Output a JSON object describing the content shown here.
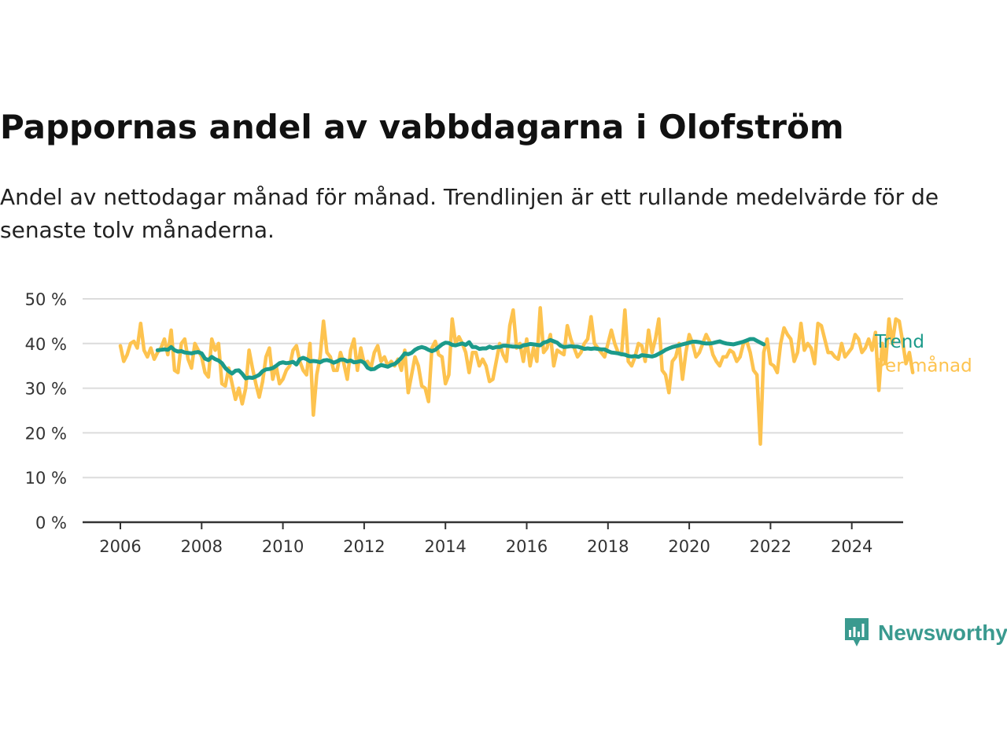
{
  "header": {
    "title": "Pappornas andel av vabbdagarna i Olofström",
    "subtitle": "Andel av nettodagar månad för månad. Trendlinjen är ett rullande medelvärde för de senaste tolv månaderna."
  },
  "brand": {
    "name": "Newsworthy",
    "color": "#3a9a8f"
  },
  "chart_data": {
    "type": "line",
    "title": "Pappornas andel av vabbdagarna i Olofström",
    "xlabel": "",
    "ylabel": "",
    "x_range": [
      2006,
      2024.4
    ],
    "ylim": [
      0,
      50
    ],
    "x_ticks": [
      2006,
      2008,
      2010,
      2012,
      2014,
      2016,
      2018,
      2020,
      2022,
      2024
    ],
    "y_ticks": [
      {
        "value": 0,
        "label": "0 %"
      },
      {
        "value": 10,
        "label": "10 %"
      },
      {
        "value": 20,
        "label": "20 %"
      },
      {
        "value": 30,
        "label": "30 %"
      },
      {
        "value": 40,
        "label": "40 %"
      },
      {
        "value": 50,
        "label": "50 %"
      }
    ],
    "grid": true,
    "legend": "right, at line ends",
    "series": [
      {
        "name": "Per månad",
        "color": "#fdc34f",
        "x_start": 2006.0,
        "x_step": 0.0833333,
        "values": [
          39.5,
          36,
          37.5,
          40,
          40.5,
          39,
          44.5,
          38.5,
          37,
          39,
          36.5,
          38,
          39,
          41,
          37.5,
          43,
          34,
          33.5,
          40,
          41,
          36.5,
          34.5,
          40,
          38.5,
          37,
          33.5,
          32.5,
          41,
          38.5,
          40,
          31,
          30.5,
          34.5,
          31,
          27.5,
          30,
          26.5,
          30,
          38.5,
          34.5,
          31,
          28,
          31.5,
          37,
          39,
          32,
          35,
          31,
          32,
          34,
          35,
          38.5,
          39.5,
          36,
          34,
          33,
          40,
          24,
          33,
          37,
          45,
          38,
          37,
          34,
          34,
          38,
          35.5,
          32,
          38.5,
          41,
          34,
          39,
          35.5,
          36,
          34.5,
          38,
          39.5,
          36,
          37,
          35,
          36,
          35,
          36.5,
          34,
          38.5,
          29,
          33,
          37,
          35,
          30.5,
          30,
          27,
          39,
          40.5,
          37.5,
          37,
          31,
          33,
          45.5,
          40,
          41.5,
          40,
          38,
          33.5,
          38,
          38,
          35,
          36.5,
          35,
          31.5,
          32,
          36,
          40,
          37.5,
          36,
          44,
          47.5,
          39,
          40,
          36,
          41,
          35,
          39,
          36,
          48,
          38,
          39,
          42,
          35,
          38.5,
          38,
          37.5,
          44,
          41,
          39,
          37,
          38,
          40,
          41,
          46,
          40,
          39,
          38,
          37,
          40,
          43,
          40,
          38,
          37.5,
          47.5,
          36,
          35,
          37,
          40,
          39.5,
          36,
          43,
          38,
          41,
          45.5,
          34,
          33,
          29,
          36,
          37,
          40,
          32,
          38,
          42,
          40,
          37,
          38,
          40,
          42,
          40.5,
          37.5,
          36,
          35,
          37,
          37,
          38.5,
          38,
          36,
          37,
          40,
          40.5,
          38,
          34,
          33,
          17.5,
          38,
          41,
          35.5,
          35,
          33.5,
          40,
          43.5,
          42,
          41,
          36,
          38,
          44.5,
          38.5,
          40,
          39,
          35.5,
          44.5,
          44,
          41,
          38,
          38,
          37,
          36.5,
          40,
          37,
          38,
          39,
          42,
          41,
          38,
          39,
          41,
          38.5,
          42.5,
          29.5,
          40,
          35.5,
          45.5,
          40,
          45.5,
          45,
          40.5,
          35.5,
          38,
          33.5
        ]
      },
      {
        "name": "Trend",
        "color": "#1b9a8a",
        "x_start": 2006.9167,
        "x_step": 0.0833333,
        "values": [
          38.5,
          38.6,
          38.7,
          38.6,
          39.2,
          38.5,
          38.2,
          38.3,
          38,
          37.9,
          37.8,
          38,
          38.1,
          37.8,
          36.6,
          36.3,
          37,
          36.5,
          36.2,
          35.6,
          34.5,
          33.8,
          33.3,
          33.9,
          34,
          33.2,
          32.2,
          32.4,
          32.3,
          32.6,
          33,
          33.8,
          34.2,
          34.3,
          34.5,
          35,
          35.6,
          35.8,
          35.6,
          35.7,
          35.9,
          35.3,
          36.5,
          36.8,
          36.5,
          36,
          36.1,
          36,
          35.8,
          36.2,
          36.3,
          36.1,
          35.7,
          36,
          36.4,
          36.4,
          36,
          36.2,
          35.8,
          35.9,
          36.1,
          35.7,
          34.6,
          34.2,
          34.3,
          34.8,
          35.2,
          35,
          34.8,
          35.2,
          35.4,
          36,
          36.8,
          37.8,
          37.6,
          37.9,
          38.6,
          39,
          39.2,
          39,
          38.6,
          38.3,
          38.6,
          39.2,
          39.8,
          40.2,
          40.1,
          39.7,
          39.6,
          39.8,
          40,
          39.7,
          40.3,
          39.2,
          39.2,
          38.8,
          38.9,
          38.9,
          39.3,
          39,
          39.2,
          39.2,
          39.5,
          39.5,
          39.4,
          39.3,
          39.3,
          39.2,
          39.6,
          39.7,
          39.9,
          39.8,
          39.7,
          39.6,
          40.2,
          40.4,
          40.8,
          40.5,
          40.2,
          39.5,
          39.2,
          39.3,
          39.4,
          39.3,
          39.3,
          39.1,
          38.8,
          38.9,
          38.8,
          38.9,
          38.8,
          38.7,
          38.7,
          38.3,
          38.0,
          37.9,
          37.8,
          37.6,
          37.5,
          37.2,
          37.1,
          37.2,
          37.0,
          37.4,
          37.3,
          37.2,
          37.1,
          37.3,
          37.7,
          38.1,
          38.6,
          38.9,
          39.2,
          39.4,
          39.6,
          39.8,
          40.0,
          40.2,
          40.4,
          40.4,
          40.3,
          40.1,
          40.0,
          40.0,
          40.1,
          40.3,
          40.5,
          40.2,
          40.0,
          39.9,
          39.8,
          40.0,
          40.2,
          40.4,
          40.7,
          41.0,
          41.0,
          40.6,
          40.2,
          39.8
        ]
      }
    ]
  }
}
